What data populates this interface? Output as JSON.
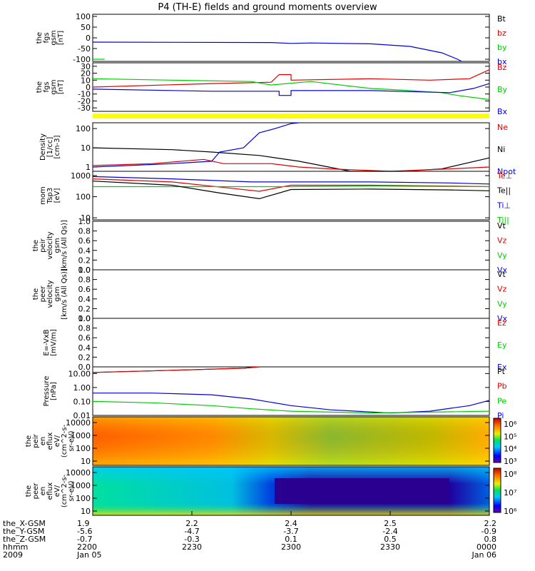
{
  "title": "P4 (TH-E) fields and ground moments overview",
  "colors": {
    "black": "#000000",
    "red": "#dd0000",
    "green": "#00cc00",
    "blue": "#0000dd",
    "yellow": "#ffff00"
  },
  "chart_data": [
    {
      "type": "line",
      "id": "fgs-gsm",
      "ylabel": [
        "the",
        "fgs",
        "gsm",
        "[nT]"
      ],
      "yticks": [
        "100",
        "50",
        "0",
        "-50",
        "-100"
      ],
      "ylim": [
        -110,
        110
      ],
      "legend": [
        "Bt",
        "bz",
        "by",
        "bx"
      ],
      "series": [
        {
          "name": "bx",
          "color": "blue",
          "points": [
            [
              0,
              -20
            ],
            [
              0.45,
              -22
            ],
            [
              0.5,
              -26
            ],
            [
              0.55,
              -24
            ],
            [
              0.7,
              -28
            ],
            [
              0.8,
              -40
            ],
            [
              0.88,
              -70
            ],
            [
              0.92,
              -100
            ],
            [
              0.93,
              -110
            ]
          ]
        },
        {
          "name": "by",
          "color": "green",
          "points": [
            [
              0,
              -100
            ],
            [
              0.03,
              -100
            ]
          ]
        }
      ]
    },
    {
      "type": "line",
      "id": "fgs-gsm-zoom",
      "ylabel": [
        "the",
        "fgs",
        "gsm",
        "[nT]"
      ],
      "yticks": [
        "30",
        "20",
        "10",
        "0",
        "-10",
        "-20",
        "-30"
      ],
      "ylim": [
        -35,
        35
      ],
      "legend": [
        "Bz",
        "By",
        "Bx"
      ],
      "series": [
        {
          "name": "Bz",
          "color": "red",
          "points": [
            [
              0,
              0
            ],
            [
              0.3,
              5
            ],
            [
              0.45,
              7
            ],
            [
              0.47,
              18
            ],
            [
              0.5,
              18
            ],
            [
              0.5,
              10
            ],
            [
              0.7,
              12
            ],
            [
              0.85,
              10
            ],
            [
              0.95,
              12
            ],
            [
              1,
              25
            ]
          ]
        },
        {
          "name": "By",
          "color": "green",
          "points": [
            [
              0,
              12
            ],
            [
              0.2,
              10
            ],
            [
              0.4,
              8
            ],
            [
              0.45,
              3
            ],
            [
              0.55,
              8
            ],
            [
              0.7,
              -2
            ],
            [
              0.8,
              -5
            ],
            [
              0.88,
              -8
            ],
            [
              0.92,
              -12
            ],
            [
              1,
              -18
            ]
          ]
        },
        {
          "name": "Bx",
          "color": "blue",
          "points": [
            [
              0,
              -3
            ],
            [
              0.3,
              -6
            ],
            [
              0.47,
              -6
            ],
            [
              0.47,
              -12
            ],
            [
              0.5,
              -12
            ],
            [
              0.5,
              -5
            ],
            [
              0.7,
              -5
            ],
            [
              0.9,
              -8
            ],
            [
              0.96,
              -2
            ],
            [
              1,
              5
            ]
          ]
        }
      ]
    },
    {
      "type": "line",
      "id": "density",
      "ylog": true,
      "ylabel": [
        "Density",
        "[1/cc]",
        "[cm-3]"
      ],
      "yticks": [
        "100",
        "10",
        "1"
      ],
      "ylim": [
        0.6,
        200
      ],
      "legend": [
        "Ne",
        "Ni",
        "Npot"
      ],
      "series": [
        {
          "name": "Ni",
          "color": "black",
          "points": [
            [
              0,
              10
            ],
            [
              0.2,
              8
            ],
            [
              0.3,
              6
            ],
            [
              0.42,
              4
            ],
            [
              0.52,
              2
            ],
            [
              0.65,
              0.6
            ],
            [
              0.78,
              0.4
            ],
            [
              0.88,
              0.8
            ],
            [
              1,
              3
            ]
          ]
        },
        {
          "name": "Ne",
          "color": "red",
          "points": [
            [
              0,
              1.2
            ],
            [
              0.15,
              1.5
            ],
            [
              0.28,
              2.5
            ],
            [
              0.33,
              1.5
            ],
            [
              0.45,
              1.5
            ],
            [
              0.52,
              1
            ],
            [
              0.6,
              0.8
            ],
            [
              0.75,
              0.6
            ],
            [
              0.9,
              0.8
            ],
            [
              1,
              1
            ]
          ]
        },
        {
          "name": "Npot",
          "color": "blue",
          "points": [
            [
              0,
              1
            ],
            [
              0.2,
              1.5
            ],
            [
              0.3,
              2
            ],
            [
              0.32,
              6
            ],
            [
              0.38,
              10
            ],
            [
              0.42,
              60
            ],
            [
              0.46,
              100
            ],
            [
              0.5,
              180
            ],
            [
              0.52,
              200
            ]
          ]
        }
      ]
    },
    {
      "type": "line",
      "id": "temperature",
      "ylog": true,
      "ylabel": [
        "mom",
        "Tsp3",
        "[eV]"
      ],
      "yticks": [
        "1000",
        "100",
        "10"
      ],
      "ylim": [
        8,
        1600
      ],
      "legend": [
        "Te⊥",
        "Te||",
        "Ti⊥",
        "Ti||"
      ],
      "series": [
        {
          "name": "Ti⊥",
          "color": "blue",
          "points": [
            [
              0,
              900
            ],
            [
              0.2,
              700
            ],
            [
              0.4,
              500
            ],
            [
              0.5,
              500
            ],
            [
              0.7,
              500
            ],
            [
              0.9,
              450
            ],
            [
              1,
              400
            ]
          ]
        },
        {
          "name": "Te⊥",
          "color": "red",
          "points": [
            [
              0,
              700
            ],
            [
              0.2,
              500
            ],
            [
              0.35,
              250
            ],
            [
              0.42,
              180
            ],
            [
              0.5,
              350
            ],
            [
              0.7,
              350
            ],
            [
              0.9,
              320
            ],
            [
              1,
              300
            ]
          ]
        },
        {
          "name": "Ti||",
          "color": "green",
          "points": [
            [
              0,
              300
            ],
            [
              0.3,
              300
            ],
            [
              0.5,
              300
            ],
            [
              0.7,
              320
            ],
            [
              1,
              300
            ]
          ]
        },
        {
          "name": "Te||",
          "color": "black",
          "points": [
            [
              0,
              550
            ],
            [
              0.2,
              350
            ],
            [
              0.32,
              150
            ],
            [
              0.42,
              80
            ],
            [
              0.5,
              220
            ],
            [
              0.7,
              230
            ],
            [
              0.9,
              210
            ],
            [
              1,
              190
            ]
          ]
        }
      ]
    },
    {
      "type": "line",
      "id": "peir-velocity",
      "ylabel": [
        "the",
        "peir",
        "velocity",
        "gsm",
        "[km/s (All Qs)]"
      ],
      "yticks": [
        "1.0",
        "0.8",
        "0.6",
        "0.4",
        "0.2",
        "0.0"
      ],
      "ylim": [
        0,
        1
      ],
      "legend": [
        "Vt",
        "Vz",
        "Vy",
        "Vx"
      ],
      "series": []
    },
    {
      "type": "line",
      "id": "peer-velocity",
      "ylabel": [
        "the",
        "peer",
        "velocity",
        "gsm",
        "[km/s (All Qs)]"
      ],
      "yticks": [
        "1.0",
        "0.8",
        "0.6",
        "0.4",
        "0.2",
        "0.0"
      ],
      "ylim": [
        0,
        1
      ],
      "legend": [
        "Vt",
        "Vz",
        "Vy",
        "Vx"
      ],
      "series": []
    },
    {
      "type": "line",
      "id": "e-vxb",
      "ylabel": [
        "E=-VxB",
        "[mV/m]"
      ],
      "yticks": [
        "1.0",
        "0.8",
        "0.6",
        "0.4",
        "0.2",
        "0.0"
      ],
      "ylim": [
        0,
        1
      ],
      "legend": [
        "Ez",
        "Ey",
        "Ex"
      ],
      "series": []
    },
    {
      "type": "line",
      "id": "pressure",
      "ylog": true,
      "ylabel": [
        "Pressure",
        "[nPa]"
      ],
      "yticks": [
        "10.00",
        "1.00",
        "0.10",
        "0.01"
      ],
      "ylim": [
        0.01,
        30
      ],
      "legend": [
        "Pt",
        "Pb",
        "Pe",
        "Pi"
      ],
      "series": [
        {
          "name": "Pt",
          "color": "black",
          "points": [
            [
              0,
              12
            ],
            [
              0.2,
              17
            ],
            [
              0.38,
              24
            ],
            [
              0.42,
              30
            ]
          ]
        },
        {
          "name": "Pb",
          "color": "red",
          "points": [
            [
              0,
              12
            ],
            [
              0.2,
              17
            ],
            [
              0.38,
              24
            ],
            [
              0.42,
              30
            ]
          ]
        },
        {
          "name": "Pi",
          "color": "blue",
          "points": [
            [
              0,
              0.4
            ],
            [
              0.15,
              0.4
            ],
            [
              0.3,
              0.3
            ],
            [
              0.4,
              0.15
            ],
            [
              0.5,
              0.05
            ],
            [
              0.6,
              0.025
            ],
            [
              0.75,
              0.015
            ],
            [
              0.85,
              0.02
            ],
            [
              0.95,
              0.05
            ],
            [
              1,
              0.12
            ]
          ]
        },
        {
          "name": "Pe",
          "color": "green",
          "points": [
            [
              0,
              0.1
            ],
            [
              0.15,
              0.08
            ],
            [
              0.3,
              0.05
            ],
            [
              0.4,
              0.03
            ],
            [
              0.5,
              0.02
            ],
            [
              0.7,
              0.015
            ],
            [
              0.9,
              0.018
            ],
            [
              1,
              0.02
            ]
          ]
        }
      ]
    },
    {
      "type": "heatmap",
      "id": "peir-eflux",
      "ylog": true,
      "ylabel": [
        "the",
        "peir",
        "en",
        "eflux",
        "eV/",
        "(cm^2-s-",
        "sr-eV)"
      ],
      "yticks": [
        "10000",
        "1000",
        "100",
        "10"
      ],
      "colorbar": [
        "10⁶",
        "10⁵",
        "10⁴",
        "10³"
      ]
    },
    {
      "type": "heatmap",
      "id": "peer-eflux",
      "ylog": true,
      "ylabel": [
        "the",
        "peer",
        "en",
        "eflux",
        "eV/",
        "(cm^2-s-",
        "sr-eV)"
      ],
      "yticks": [
        "10000",
        "1000",
        "100",
        "10"
      ],
      "colorbar": [
        "10⁸",
        "10⁷",
        "10⁶"
      ]
    }
  ],
  "time_axis": {
    "row_labels": [
      "the_X-GSM",
      "the_Y-GSM",
      "the_Z-GSM",
      "hhmm",
      "2009"
    ],
    "columns": [
      [
        "1.9",
        "-5.6",
        "-0.7",
        "2200",
        "Jan 05"
      ],
      [
        "2.2",
        "-4.7",
        "-0.3",
        "2230",
        ""
      ],
      [
        "2.4",
        "-3.7",
        "0.1",
        "2300",
        ""
      ],
      [
        "2.5",
        "-2.4",
        "0.5",
        "2330",
        ""
      ],
      [
        "2.2",
        "-0.9",
        "0.8",
        "0000",
        "Jan 06"
      ]
    ]
  }
}
